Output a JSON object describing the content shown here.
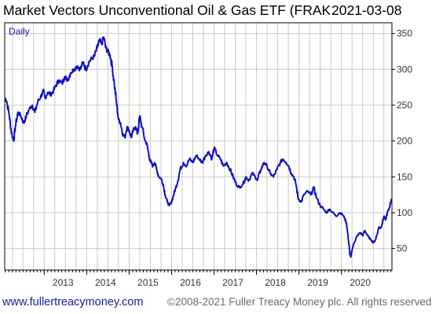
{
  "title": "Market Vectors Unconventional Oil & Gas ETF (FRAK U",
  "date": "2021-03-08",
  "period_label": "Daily",
  "footer": {
    "url": "www.fullertreacymoney.com",
    "copyright": "©2008-2021 Fuller Treacy Money plc. All rights reserved"
  },
  "colors": {
    "line": "#1010c0",
    "grid": "#c8c8c8",
    "frame": "#000000",
    "url": "#1a1aa8"
  },
  "chart_data": {
    "type": "line",
    "title": "Market Vectors Unconventional Oil & Gas ETF (FRAK U",
    "xlabel": "",
    "ylabel": "",
    "xlim": [
      2012.07,
      2021.19
    ],
    "ylim": [
      20,
      365
    ],
    "x_ticks": [
      2013,
      2014,
      2015,
      2016,
      2017,
      2018,
      2019,
      2020
    ],
    "y_ticks": [
      50,
      100,
      150,
      200,
      250,
      300,
      350
    ],
    "grid": true,
    "series": [
      {
        "x": [
          2012.08,
          2012.12,
          2012.18,
          2012.22,
          2012.28,
          2012.32,
          2012.38,
          2012.45,
          2012.52,
          2012.58,
          2012.65,
          2012.72,
          2012.78,
          2012.85,
          2012.92,
          2012.98,
          2013.02,
          2013.08,
          2013.15,
          2013.22,
          2013.28,
          2013.35,
          2013.42,
          2013.48,
          2013.55,
          2013.62,
          2013.7,
          2013.78,
          2013.85,
          2013.92,
          2013.98,
          2014.05,
          2014.12,
          2014.18,
          2014.25,
          2014.3,
          2014.35,
          2014.4,
          2014.45,
          2014.5,
          2014.55,
          2014.6,
          2014.65,
          2014.7,
          2014.75,
          2014.8,
          2014.85,
          2014.9,
          2014.95,
          2015.0,
          2015.05,
          2015.1,
          2015.15,
          2015.2,
          2015.25,
          2015.3,
          2015.38,
          2015.42,
          2015.48,
          2015.52,
          2015.56,
          2015.6,
          2015.65,
          2015.7,
          2015.75,
          2015.8,
          2015.85,
          2015.9,
          2015.95,
          2016.0,
          2016.05,
          2016.1,
          2016.15,
          2016.2,
          2016.28,
          2016.35,
          2016.42,
          2016.5,
          2016.58,
          2016.65,
          2016.72,
          2016.8,
          2016.88,
          2016.95,
          2017.0,
          2017.08,
          2017.15,
          2017.22,
          2017.3,
          2017.38,
          2017.45,
          2017.52,
          2017.6,
          2017.68,
          2017.75,
          2017.82,
          2017.9,
          2017.97,
          2018.02,
          2018.1,
          2018.18,
          2018.25,
          2018.32,
          2018.4,
          2018.48,
          2018.56,
          2018.62,
          2018.7,
          2018.76,
          2018.82,
          2018.88,
          2018.93,
          2018.98,
          2019.05,
          2019.12,
          2019.2,
          2019.28,
          2019.35,
          2019.42,
          2019.5,
          2019.58,
          2019.65,
          2019.72,
          2019.8,
          2019.88,
          2019.95,
          2020.02,
          2020.08,
          2020.12,
          2020.15,
          2020.18,
          2020.2,
          2020.22,
          2020.25,
          2020.3,
          2020.35,
          2020.4,
          2020.45,
          2020.5,
          2020.55,
          2020.6,
          2020.65,
          2020.7,
          2020.75,
          2020.8,
          2020.85,
          2020.88,
          2020.92,
          2020.96,
          2021.0,
          2021.04,
          2021.08,
          2021.12,
          2021.16,
          2021.18
        ],
        "y": [
          260,
          255,
          235,
          215,
          200,
          220,
          240,
          235,
          225,
          235,
          245,
          250,
          240,
          255,
          262,
          270,
          260,
          268,
          265,
          270,
          278,
          285,
          280,
          290,
          285,
          295,
          300,
          305,
          300,
          310,
          300,
          310,
          315,
          318,
          330,
          340,
          335,
          345,
          330,
          325,
          320,
          305,
          280,
          255,
          230,
          225,
          210,
          205,
          220,
          215,
          205,
          215,
          220,
          210,
          235,
          220,
          200,
          195,
          175,
          170,
          165,
          170,
          160,
          150,
          148,
          140,
          125,
          115,
          110,
          115,
          125,
          135,
          145,
          160,
          170,
          165,
          175,
          170,
          180,
          175,
          170,
          180,
          185,
          175,
          190,
          180,
          175,
          165,
          170,
          160,
          150,
          140,
          135,
          140,
          150,
          145,
          155,
          150,
          145,
          160,
          170,
          165,
          155,
          150,
          160,
          170,
          175,
          170,
          165,
          155,
          150,
          140,
          120,
          115,
          125,
          130,
          125,
          135,
          120,
          110,
          105,
          100,
          105,
          100,
          95,
          100,
          98,
          92,
          85,
          70,
          55,
          42,
          38,
          48,
          58,
          65,
          70,
          72,
          68,
          75,
          70,
          65,
          62,
          58,
          62,
          72,
          80,
          78,
          85,
          95,
          90,
          100,
          105,
          115,
          118
        ]
      }
    ]
  }
}
